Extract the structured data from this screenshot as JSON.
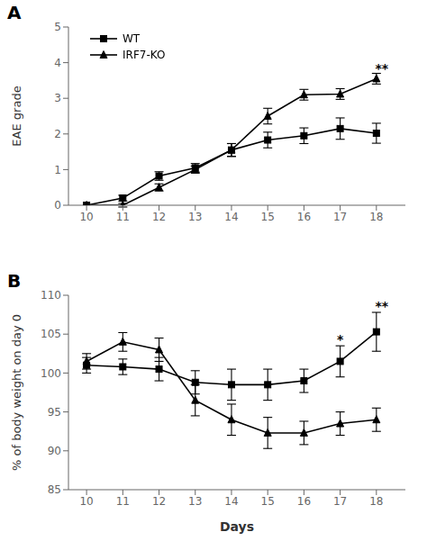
{
  "chart_data": [
    {
      "type": "line",
      "title": "A",
      "x": [
        10,
        11,
        12,
        13,
        14,
        15,
        16,
        17,
        18
      ],
      "xlim": [
        9.5,
        18.8
      ],
      "xticks": [
        10,
        11,
        12,
        13,
        14,
        15,
        16,
        17,
        18
      ],
      "ylabel": "EAE grade",
      "ylim": [
        0,
        5
      ],
      "yticks": [
        0,
        1,
        2,
        3,
        4,
        5
      ],
      "legend": "upper left",
      "series": [
        {
          "name": "WT",
          "color": "#000000",
          "marker": "square",
          "values": [
            0.0,
            0.2,
            0.82,
            1.05,
            1.55,
            1.83,
            1.95,
            2.15,
            2.02
          ],
          "errors": [
            0.0,
            0.08,
            0.12,
            0.12,
            0.18,
            0.22,
            0.22,
            0.3,
            0.28
          ]
        },
        {
          "name": "IRF7-KO",
          "color": "#000000",
          "marker": "triangle",
          "values": [
            0.0,
            0.0,
            0.5,
            1.0,
            1.55,
            2.5,
            3.1,
            3.12,
            3.55
          ],
          "errors": [
            0.0,
            0.05,
            0.1,
            0.1,
            0.18,
            0.22,
            0.15,
            0.15,
            0.15
          ]
        }
      ],
      "annotations": [
        {
          "text": "**",
          "x": 18.15,
          "y": 3.72
        }
      ]
    },
    {
      "type": "line",
      "title": "B",
      "x": [
        10,
        11,
        12,
        13,
        14,
        15,
        16,
        17,
        18
      ],
      "xlim": [
        9.5,
        18.8
      ],
      "xticks": [
        10,
        11,
        12,
        13,
        14,
        15,
        16,
        17,
        18
      ],
      "xlabel": "Days",
      "ylabel": "% of body weight on day 0",
      "ylim": [
        85,
        110
      ],
      "yticks": [
        85,
        90,
        95,
        100,
        105,
        110
      ],
      "series": [
        {
          "color": "#000000",
          "marker": "square",
          "values": [
            101.0,
            100.8,
            100.5,
            98.8,
            98.5,
            98.5,
            99.0,
            101.5,
            105.3
          ],
          "errors": [
            1.0,
            1.0,
            1.5,
            1.5,
            2.0,
            2.0,
            1.5,
            2.0,
            2.5
          ]
        },
        {
          "color": "#000000",
          "marker": "triangle",
          "values": [
            101.5,
            104.0,
            103.0,
            96.5,
            94.0,
            92.3,
            92.3,
            93.5,
            94.0
          ],
          "errors": [
            1.0,
            1.2,
            1.5,
            2.0,
            2.0,
            2.0,
            1.5,
            1.5,
            1.5
          ]
        }
      ],
      "annotations": [
        {
          "text": "*",
          "x": 17.0,
          "y": 103.8
        },
        {
          "text": "**",
          "x": 18.15,
          "y": 108.0
        }
      ]
    }
  ]
}
